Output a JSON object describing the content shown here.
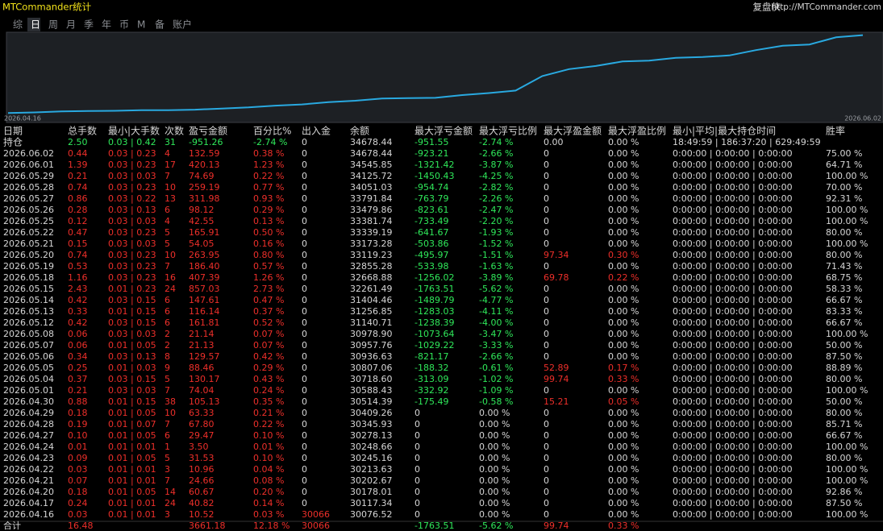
{
  "header": {
    "title": "MTCommander统计",
    "brand": "复盘侠",
    "url": "http://MTCommander.com"
  },
  "tabs": {
    "items": [
      "综",
      "日",
      "周",
      "月",
      "季",
      "年",
      "币",
      "M",
      "备",
      "账户"
    ],
    "selected": 1
  },
  "chart_data": {
    "type": "line",
    "color": "#29a9e0",
    "ylim": [
      29950,
      34800
    ],
    "x": [
      "2026.04.16",
      null,
      null,
      null,
      null,
      null,
      null,
      null,
      null,
      null,
      null,
      null,
      null,
      null,
      null,
      null,
      null,
      null,
      null,
      null,
      null,
      null,
      null,
      null,
      null,
      null,
      null,
      null,
      null,
      null,
      null,
      null,
      "2026.06.02"
    ],
    "values": [
      30076.52,
      30117.34,
      30178.01,
      30202.67,
      30213.63,
      30245.16,
      30248.66,
      30278.13,
      30345.93,
      30409.26,
      30514.39,
      30588.43,
      30718.6,
      30807.06,
      30936.63,
      30957.76,
      30978.9,
      31140.71,
      31256.85,
      31404.46,
      32261.49,
      32668.88,
      32855.28,
      33119.23,
      33173.28,
      33339.19,
      33381.74,
      33479.86,
      33791.84,
      34051.03,
      34125.72,
      34545.85,
      34678.44
    ]
  },
  "table": {
    "columns": [
      "日期",
      "总手数",
      "最小|大手数",
      "次数",
      "盈亏金额",
      "百分比%",
      "出入金",
      "余额",
      "最大浮亏金额",
      "最大浮亏比例",
      "最大浮盈金额",
      "最大浮盈比例",
      "最小|平均|最大持仓时间",
      "胜率"
    ],
    "position_row": [
      "持仓",
      "2.50",
      "0.03 | 0.42",
      "31",
      "-951.26",
      "-2.74 %",
      "0",
      "34678.44",
      "-951.55",
      "-2.74 %",
      "0.00",
      "0.00 %",
      "18:49:59 | 186:37:20 | 629:49:59"
    ],
    "rows": [
      [
        "2026.06.02",
        "0.44",
        "0.03 | 0.23",
        "4",
        "132.59",
        "0.38 %",
        "0",
        "34678.44",
        "-923.21",
        "-2.66 %",
        "0",
        "0.00 %",
        "0:00:00 | 0:00:00 | 0:00:00",
        "75.00 %"
      ],
      [
        "2026.06.01",
        "1.39",
        "0.03 | 0.23",
        "17",
        "420.13",
        "1.23 %",
        "0",
        "34545.85",
        "-1321.42",
        "-3.87 %",
        "0",
        "0.00 %",
        "0:00:00 | 0:00:00 | 0:00:00",
        "64.71 %"
      ],
      [
        "2026.05.29",
        "0.21",
        "0.03 | 0.03",
        "7",
        "74.69",
        "0.22 %",
        "0",
        "34125.72",
        "-1450.43",
        "-4.25 %",
        "0",
        "0.00 %",
        "0:00:00 | 0:00:00 | 0:00:00",
        "100.00 %"
      ],
      [
        "2026.05.28",
        "0.74",
        "0.03 | 0.23",
        "10",
        "259.19",
        "0.77 %",
        "0",
        "34051.03",
        "-954.74",
        "-2.82 %",
        "0",
        "0.00 %",
        "0:00:00 | 0:00:00 | 0:00:00",
        "70.00 %"
      ],
      [
        "2026.05.27",
        "0.86",
        "0.03 | 0.22",
        "13",
        "311.98",
        "0.93 %",
        "0",
        "33791.84",
        "-763.79",
        "-2.26 %",
        "0",
        "0.00 %",
        "0:00:00 | 0:00:00 | 0:00:00",
        "92.31 %"
      ],
      [
        "2026.05.26",
        "0.28",
        "0.03 | 0.13",
        "6",
        "98.12",
        "0.29 %",
        "0",
        "33479.86",
        "-823.61",
        "-2.47 %",
        "0",
        "0.00 %",
        "0:00:00 | 0:00:00 | 0:00:00",
        "100.00 %"
      ],
      [
        "2026.05.25",
        "0.12",
        "0.03 | 0.03",
        "4",
        "42.55",
        "0.13 %",
        "0",
        "33381.74",
        "-733.49",
        "-2.20 %",
        "0",
        "0.00 %",
        "0:00:00 | 0:00:00 | 0:00:00",
        "100.00 %"
      ],
      [
        "2026.05.22",
        "0.47",
        "0.03 | 0.23",
        "5",
        "165.91",
        "0.50 %",
        "0",
        "33339.19",
        "-641.67",
        "-1.93 %",
        "0",
        "0.00 %",
        "0:00:00 | 0:00:00 | 0:00:00",
        "80.00 %"
      ],
      [
        "2026.05.21",
        "0.15",
        "0.03 | 0.03",
        "5",
        "54.05",
        "0.16 %",
        "0",
        "33173.28",
        "-503.86",
        "-1.52 %",
        "0",
        "0.00 %",
        "0:00:00 | 0:00:00 | 0:00:00",
        "100.00 %"
      ],
      [
        "2026.05.20",
        "0.74",
        "0.03 | 0.23",
        "10",
        "263.95",
        "0.80 %",
        "0",
        "33119.23",
        "-495.97",
        "-1.51 %",
        "97.34",
        "0.30 %",
        "0:00:00 | 0:00:00 | 0:00:00",
        "80.00 %"
      ],
      [
        "2026.05.19",
        "0.53",
        "0.03 | 0.23",
        "7",
        "186.40",
        "0.57 %",
        "0",
        "32855.28",
        "-533.98",
        "-1.63 %",
        "0",
        "0.00 %",
        "0:00:00 | 0:00:00 | 0:00:00",
        "71.43 %"
      ],
      [
        "2026.05.18",
        "1.16",
        "0.03 | 0.23",
        "16",
        "407.39",
        "1.26 %",
        "0",
        "32668.88",
        "-1256.02",
        "-3.89 %",
        "69.78",
        "0.22 %",
        "0:00:00 | 0:00:00 | 0:00:00",
        "68.75 %"
      ],
      [
        "2026.05.15",
        "2.43",
        "0.01 | 0.23",
        "24",
        "857.03",
        "2.73 %",
        "0",
        "32261.49",
        "-1763.51",
        "-5.62 %",
        "0",
        "0.00 %",
        "0:00:00 | 0:00:00 | 0:00:00",
        "58.33 %"
      ],
      [
        "2026.05.14",
        "0.42",
        "0.03 | 0.15",
        "6",
        "147.61",
        "0.47 %",
        "0",
        "31404.46",
        "-1489.79",
        "-4.77 %",
        "0",
        "0.00 %",
        "0:00:00 | 0:00:00 | 0:00:00",
        "66.67 %"
      ],
      [
        "2026.05.13",
        "0.33",
        "0.01 | 0.15",
        "6",
        "116.14",
        "0.37 %",
        "0",
        "31256.85",
        "-1283.03",
        "-4.11 %",
        "0",
        "0.00 %",
        "0:00:00 | 0:00:00 | 0:00:00",
        "83.33 %"
      ],
      [
        "2026.05.12",
        "0.42",
        "0.03 | 0.15",
        "6",
        "161.81",
        "0.52 %",
        "0",
        "31140.71",
        "-1238.39",
        "-4.00 %",
        "0",
        "0.00 %",
        "0:00:00 | 0:00:00 | 0:00:00",
        "66.67 %"
      ],
      [
        "2026.05.08",
        "0.06",
        "0.03 | 0.03",
        "2",
        "21.14",
        "0.07 %",
        "0",
        "30978.90",
        "-1073.64",
        "-3.47 %",
        "0",
        "0.00 %",
        "0:00:00 | 0:00:00 | 0:00:00",
        "100.00 %"
      ],
      [
        "2026.05.07",
        "0.06",
        "0.01 | 0.05",
        "2",
        "21.13",
        "0.07 %",
        "0",
        "30957.76",
        "-1029.22",
        "-3.33 %",
        "0",
        "0.00 %",
        "0:00:00 | 0:00:00 | 0:00:00",
        "50.00 %"
      ],
      [
        "2026.05.06",
        "0.34",
        "0.03 | 0.13",
        "8",
        "129.57",
        "0.42 %",
        "0",
        "30936.63",
        "-821.17",
        "-2.66 %",
        "0",
        "0.00 %",
        "0:00:00 | 0:00:00 | 0:00:00",
        "87.50 %"
      ],
      [
        "2026.05.05",
        "0.25",
        "0.01 | 0.03",
        "9",
        "88.46",
        "0.29 %",
        "0",
        "30807.06",
        "-188.32",
        "-0.61 %",
        "52.89",
        "0.17 %",
        "0:00:00 | 0:00:00 | 0:00:00",
        "88.89 %"
      ],
      [
        "2026.05.04",
        "0.37",
        "0.03 | 0.15",
        "5",
        "130.17",
        "0.43 %",
        "0",
        "30718.60",
        "-313.09",
        "-1.02 %",
        "99.74",
        "0.33 %",
        "0:00:00 | 0:00:00 | 0:00:00",
        "80.00 %"
      ],
      [
        "2026.05.01",
        "0.21",
        "0.03 | 0.03",
        "7",
        "74.04",
        "0.24 %",
        "0",
        "30588.43",
        "-332.92",
        "-1.09 %",
        "0",
        "0.00 %",
        "0:00:00 | 0:00:00 | 0:00:00",
        "100.00 %"
      ],
      [
        "2026.04.30",
        "0.88",
        "0.01 | 0.15",
        "38",
        "105.13",
        "0.35 %",
        "0",
        "30514.39",
        "-175.49",
        "-0.58 %",
        "15.21",
        "0.05 %",
        "0:00:00 | 0:00:00 | 0:00:00",
        "50.00 %"
      ],
      [
        "2026.04.29",
        "0.18",
        "0.01 | 0.05",
        "10",
        "63.33",
        "0.21 %",
        "0",
        "30409.26",
        "0",
        "0.00 %",
        "0",
        "0.00 %",
        "0:00:00 | 0:00:00 | 0:00:00",
        "80.00 %"
      ],
      [
        "2026.04.28",
        "0.19",
        "0.01 | 0.07",
        "7",
        "67.80",
        "0.22 %",
        "0",
        "30345.93",
        "0",
        "0.00 %",
        "0",
        "0.00 %",
        "0:00:00 | 0:00:00 | 0:00:00",
        "85.71 %"
      ],
      [
        "2026.04.27",
        "0.10",
        "0.01 | 0.05",
        "6",
        "29.47",
        "0.10 %",
        "0",
        "30278.13",
        "0",
        "0.00 %",
        "0",
        "0.00 %",
        "0:00:00 | 0:00:00 | 0:00:00",
        "66.67 %"
      ],
      [
        "2026.04.24",
        "0.01",
        "0.01 | 0.01",
        "1",
        "3.50",
        "0.01 %",
        "0",
        "30248.66",
        "0",
        "0.00 %",
        "0",
        "0.00 %",
        "0:00:00 | 0:00:00 | 0:00:00",
        "100.00 %"
      ],
      [
        "2026.04.23",
        "0.09",
        "0.01 | 0.05",
        "5",
        "31.53",
        "0.10 %",
        "0",
        "30245.16",
        "0",
        "0.00 %",
        "0",
        "0.00 %",
        "0:00:00 | 0:00:00 | 0:00:00",
        "80.00 %"
      ],
      [
        "2026.04.22",
        "0.03",
        "0.01 | 0.01",
        "3",
        "10.96",
        "0.04 %",
        "0",
        "30213.63",
        "0",
        "0.00 %",
        "0",
        "0.00 %",
        "0:00:00 | 0:00:00 | 0:00:00",
        "100.00 %"
      ],
      [
        "2026.04.21",
        "0.07",
        "0.01 | 0.01",
        "7",
        "24.66",
        "0.08 %",
        "0",
        "30202.67",
        "0",
        "0.00 %",
        "0",
        "0.00 %",
        "0:00:00 | 0:00:00 | 0:00:00",
        "100.00 %"
      ],
      [
        "2026.04.20",
        "0.18",
        "0.01 | 0.05",
        "14",
        "60.67",
        "0.20 %",
        "0",
        "30178.01",
        "0",
        "0.00 %",
        "0",
        "0.00 %",
        "0:00:00 | 0:00:00 | 0:00:00",
        "92.86 %"
      ],
      [
        "2026.04.17",
        "0.24",
        "0.01 | 0.01",
        "24",
        "40.82",
        "0.14 %",
        "0",
        "30117.34",
        "0",
        "0.00 %",
        "0",
        "0.00 %",
        "0:00:00 | 0:00:00 | 0:00:00",
        "87.50 %"
      ],
      [
        "2026.04.16",
        "0.03",
        "0.01 | 0.01",
        "3",
        "10.52",
        "0.03 %",
        "30066",
        "30076.52",
        "0",
        "0.00 %",
        "0",
        "0.00 %",
        "0:00:00 | 0:00:00 | 0:00:00",
        "100.00 %"
      ]
    ],
    "total_row": [
      "合计",
      "16.48",
      null,
      null,
      "3661.18",
      "12.18 %",
      "30066",
      null,
      "-1763.51",
      "-5.62 %",
      "99.74",
      "0.33 %"
    ]
  }
}
